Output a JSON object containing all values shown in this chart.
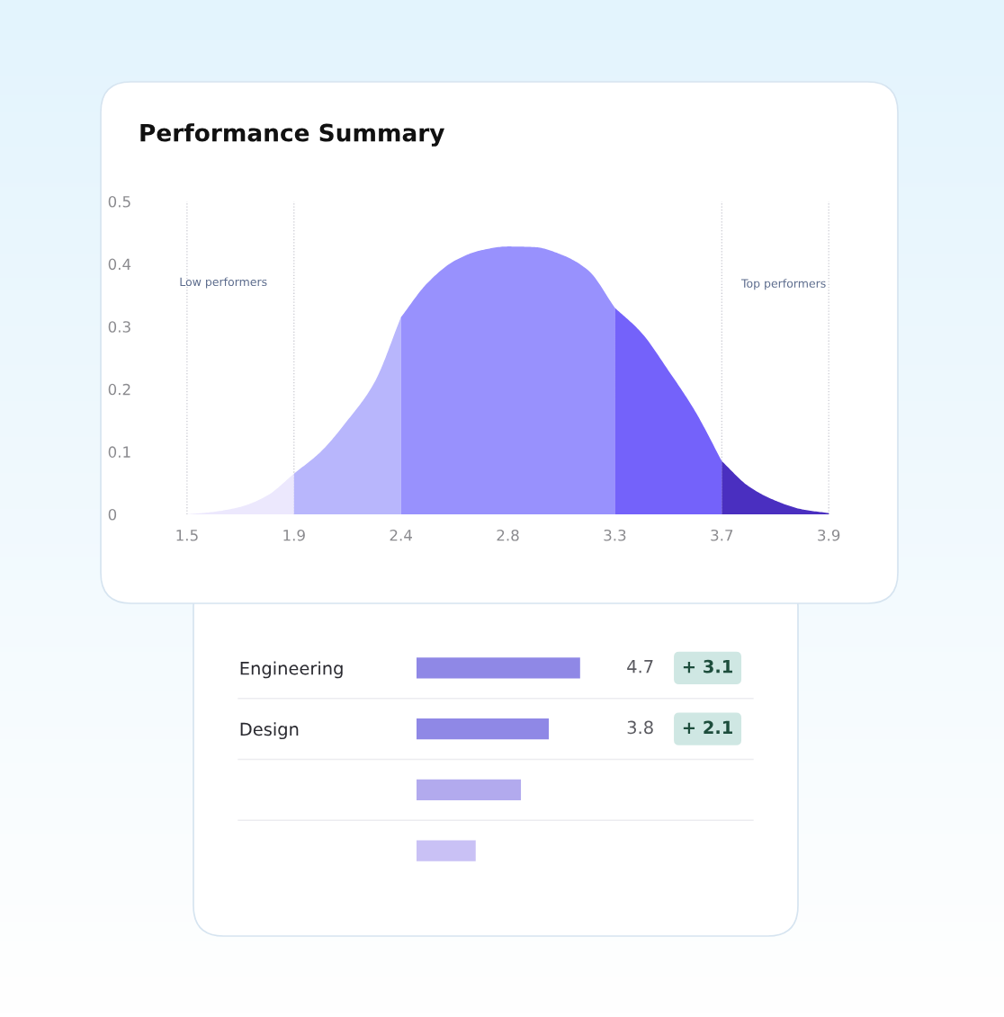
{
  "chart_data": [
    {
      "type": "area",
      "title": "Performance Summary",
      "categories": [
        "1.5",
        null,
        null,
        null,
        "1.9",
        null,
        null,
        null,
        "2.4",
        null,
        null,
        null,
        "2.8",
        null,
        null,
        null,
        "3.3",
        null,
        null,
        null,
        "3.7",
        null,
        null,
        null,
        "3.9"
      ],
      "series": [
        {
          "color": "#ece8fd",
          "values": [
            0,
            0.004,
            0.012,
            0.03,
            0.065,
            null,
            null,
            null,
            null,
            null,
            null,
            null,
            null,
            null,
            null,
            null,
            null,
            null,
            null,
            null,
            null,
            null,
            null,
            null,
            null
          ]
        },
        {
          "color": "#b8b6fc",
          "values": [
            null,
            null,
            null,
            null,
            0.065,
            0.1,
            0.15,
            0.21,
            0.315,
            null,
            null,
            null,
            null,
            null,
            null,
            null,
            null,
            null,
            null,
            null,
            null,
            null,
            null,
            null,
            null
          ]
        },
        {
          "color": "#9891fd",
          "values": [
            null,
            null,
            null,
            null,
            null,
            null,
            null,
            null,
            0.315,
            0.37,
            0.405,
            0.422,
            0.428,
            0.427,
            0.415,
            0.39,
            0.33,
            null,
            null,
            null,
            null,
            null,
            null,
            null,
            null
          ]
        },
        {
          "color": "#7462fa",
          "values": [
            null,
            null,
            null,
            null,
            null,
            null,
            null,
            null,
            null,
            null,
            null,
            null,
            null,
            null,
            null,
            null,
            0.33,
            0.29,
            0.23,
            0.165,
            0.085,
            null,
            null,
            null,
            null
          ]
        },
        {
          "color": "#4a2fc0",
          "values": [
            null,
            null,
            null,
            null,
            null,
            null,
            null,
            null,
            null,
            null,
            null,
            null,
            null,
            null,
            null,
            null,
            null,
            null,
            null,
            null,
            0.085,
            0.045,
            0.022,
            0.008,
            0.002
          ]
        }
      ],
      "ylim": [
        0,
        0.5
      ],
      "yticks": [
        0,
        0.1,
        0.2,
        0.3,
        0.4,
        0.5
      ],
      "ref_lines": [
        {
          "axis": "x",
          "value": "1.5",
          "color": "#c8c8d0",
          "line_style": "dotted"
        },
        {
          "axis": "x",
          "value": "1.9",
          "color": "#c8c8d0",
          "line_style": "dotted"
        },
        {
          "axis": "x",
          "value": "3.7",
          "color": "#c8c8d0",
          "line_style": "dotted"
        },
        {
          "axis": "x",
          "value": "3.9",
          "color": "#c8c8d0",
          "line_style": "dotted"
        }
      ],
      "annotations": [
        "Low performers",
        "Top performers"
      ],
      "grid": false
    },
    {
      "type": "bar",
      "orientation": "horizontal",
      "categories": [
        "Engineering",
        "Design",
        null,
        null
      ],
      "values": [
        4.7,
        3.8,
        3.0,
        1.7
      ],
      "colors": [
        "#8f88e6",
        "#8f88e6",
        "#b2aaee",
        "#c9c1f5"
      ],
      "value_labels": [
        "4.7",
        "3.8",
        null,
        null
      ],
      "annotations": [
        "+ 3.1",
        "+ 2.1"
      ],
      "grid": false
    }
  ]
}
